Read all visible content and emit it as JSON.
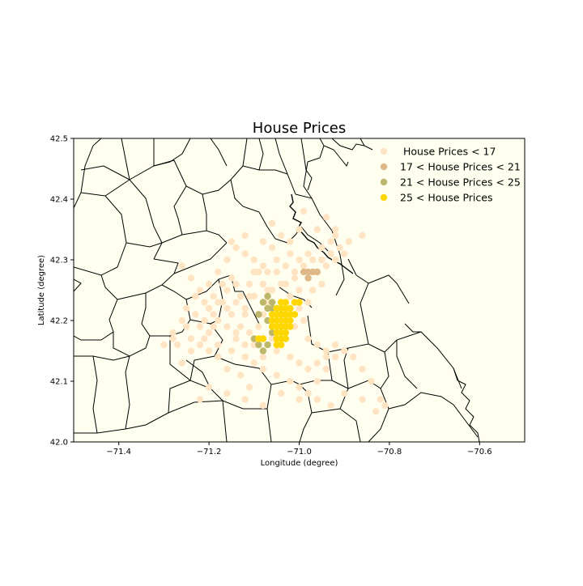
{
  "chart_data": {
    "type": "scatter",
    "title": "House Prices",
    "xlabel": "Longitude (degree)",
    "ylabel": "Latitude (degree)",
    "xlim": [
      -71.5,
      -70.5
    ],
    "ylim": [
      42.0,
      42.5
    ],
    "x_ticks": [
      -71.4,
      -71.2,
      -71.0,
      -70.8,
      -70.6
    ],
    "x_tick_labels": [
      "−71.4",
      "−71.2",
      "−71.0",
      "−70.8",
      "−70.6"
    ],
    "y_ticks": [
      42.0,
      42.1,
      42.2,
      42.3,
      42.4,
      42.5
    ],
    "y_tick_labels": [
      "42.0",
      "42.1",
      "42.2",
      "42.3",
      "42.4",
      "42.5"
    ],
    "grid": false,
    "background_color": "#fffff0",
    "boundary_color": "#000000",
    "legend_position": "top-right",
    "series": [
      {
        "name": " House Prices < 17",
        "color": "#ffe4c4",
        "points": [
          [
            -71.26,
            42.29
          ],
          [
            -71.24,
            42.27
          ],
          [
            -71.22,
            42.25
          ],
          [
            -71.2,
            42.22
          ],
          [
            -71.18,
            42.2
          ],
          [
            -71.16,
            42.19
          ],
          [
            -71.14,
            42.18
          ],
          [
            -71.12,
            42.21
          ],
          [
            -71.1,
            42.24
          ],
          [
            -71.08,
            42.26
          ],
          [
            -71.06,
            42.25
          ],
          [
            -71.04,
            42.26
          ],
          [
            -71.02,
            42.24
          ],
          [
            -71.0,
            42.25
          ],
          [
            -70.98,
            42.27
          ],
          [
            -70.96,
            42.28
          ],
          [
            -70.94,
            42.29
          ],
          [
            -70.92,
            42.3
          ],
          [
            -70.9,
            42.31
          ],
          [
            -70.93,
            42.33
          ],
          [
            -70.95,
            42.32
          ],
          [
            -70.98,
            42.31
          ],
          [
            -71.0,
            42.3
          ],
          [
            -71.02,
            42.31
          ],
          [
            -71.05,
            42.3
          ],
          [
            -71.08,
            42.29
          ],
          [
            -71.1,
            42.3
          ],
          [
            -71.12,
            42.31
          ],
          [
            -71.14,
            42.32
          ],
          [
            -71.16,
            42.3
          ],
          [
            -71.18,
            42.28
          ],
          [
            -71.2,
            42.26
          ],
          [
            -71.23,
            42.24
          ],
          [
            -71.26,
            42.2
          ],
          [
            -71.28,
            42.18
          ],
          [
            -71.3,
            42.16
          ],
          [
            -71.27,
            42.16
          ],
          [
            -71.24,
            42.17
          ],
          [
            -71.21,
            42.17
          ],
          [
            -71.18,
            42.16
          ],
          [
            -71.15,
            42.15
          ],
          [
            -71.12,
            42.14
          ],
          [
            -71.1,
            42.13
          ],
          [
            -71.08,
            42.12
          ],
          [
            -71.05,
            42.11
          ],
          [
            -71.02,
            42.1
          ],
          [
            -71.0,
            42.09
          ],
          [
            -70.98,
            42.08
          ],
          [
            -70.96,
            42.1
          ],
          [
            -70.94,
            42.12
          ],
          [
            -70.92,
            42.14
          ],
          [
            -70.9,
            42.15
          ],
          [
            -70.88,
            42.14
          ],
          [
            -70.86,
            42.12
          ],
          [
            -70.84,
            42.1
          ],
          [
            -70.82,
            42.07
          ],
          [
            -70.83,
            42.05
          ],
          [
            -70.81,
            42.06
          ],
          [
            -70.86,
            42.07
          ],
          [
            -70.9,
            42.08
          ],
          [
            -70.93,
            42.06
          ],
          [
            -70.96,
            42.07
          ],
          [
            -71.0,
            42.07
          ],
          [
            -71.04,
            42.08
          ],
          [
            -71.08,
            42.06
          ],
          [
            -71.12,
            42.07
          ],
          [
            -71.16,
            42.08
          ],
          [
            -71.2,
            42.09
          ],
          [
            -71.22,
            42.07
          ],
          [
            -71.11,
            42.09
          ],
          [
            -71.13,
            42.11
          ],
          [
            -71.16,
            42.12
          ],
          [
            -71.18,
            42.14
          ],
          [
            -71.2,
            42.15
          ],
          [
            -71.22,
            42.16
          ],
          [
            -71.24,
            42.15
          ],
          [
            -71.26,
            42.13
          ],
          [
            -71.08,
            42.14
          ],
          [
            -71.05,
            42.15
          ],
          [
            -71.02,
            42.14
          ],
          [
            -71.0,
            42.13
          ],
          [
            -70.98,
            42.12
          ],
          [
            -70.96,
            42.13
          ],
          [
            -70.94,
            42.14
          ],
          [
            -71.03,
            42.18
          ],
          [
            -71.01,
            42.19
          ],
          [
            -70.99,
            42.2
          ],
          [
            -71.09,
            42.19
          ],
          [
            -71.11,
            42.18
          ],
          [
            -71.13,
            42.19
          ],
          [
            -71.15,
            42.21
          ],
          [
            -71.17,
            42.23
          ],
          [
            -71.19,
            42.24
          ],
          [
            -71.21,
            42.23
          ],
          [
            -71.13,
            42.24
          ],
          [
            -71.11,
            42.26
          ],
          [
            -71.09,
            42.28
          ],
          [
            -71.07,
            42.28
          ],
          [
            -71.05,
            42.28
          ],
          [
            -71.03,
            42.29
          ],
          [
            -71.01,
            42.28
          ],
          [
            -70.99,
            42.29
          ],
          [
            -70.97,
            42.3
          ],
          [
            -70.95,
            42.3
          ],
          [
            -70.93,
            42.31
          ],
          [
            -70.91,
            42.32
          ],
          [
            -70.89,
            42.33
          ],
          [
            -70.92,
            42.34
          ],
          [
            -70.96,
            42.35
          ],
          [
            -71.0,
            42.35
          ],
          [
            -71.04,
            42.34
          ],
          [
            -71.08,
            42.33
          ],
          [
            -71.12,
            42.34
          ],
          [
            -71.15,
            42.33
          ],
          [
            -71.06,
            42.36
          ],
          [
            -70.99,
            42.38
          ],
          [
            -70.94,
            42.37
          ],
          [
            -70.92,
            42.35
          ],
          [
            -70.86,
            42.34
          ],
          [
            -71.02,
            42.33
          ],
          [
            -71.06,
            42.32
          ],
          [
            -71.1,
            42.28
          ],
          [
            -71.14,
            42.26
          ],
          [
            -71.16,
            42.25
          ],
          [
            -71.18,
            42.23
          ],
          [
            -71.07,
            42.23
          ],
          [
            -71.04,
            42.21
          ],
          [
            -71.0,
            42.22
          ],
          [
            -70.98,
            42.23
          ],
          [
            -71.12,
            42.16
          ],
          [
            -71.14,
            42.17
          ],
          [
            -71.1,
            42.16
          ],
          [
            -71.06,
            42.17
          ],
          [
            -70.98,
            42.17
          ],
          [
            -70.96,
            42.16
          ],
          [
            -70.94,
            42.15
          ],
          [
            -70.92,
            42.16
          ],
          [
            -71.2,
            42.18
          ],
          [
            -71.22,
            42.19
          ],
          [
            -71.25,
            42.19
          ],
          [
            -71.28,
            42.17
          ],
          [
            -71.25,
            42.22
          ],
          [
            -71.23,
            42.21
          ],
          [
            -71.19,
            42.19
          ],
          [
            -71.16,
            42.22
          ],
          [
            -71.14,
            42.23
          ],
          [
            -71.12,
            42.22
          ],
          [
            -71.08,
            42.21
          ],
          [
            -71.02,
            42.22
          ],
          [
            -70.97,
            42.25
          ],
          [
            -70.95,
            42.26
          ],
          [
            -71.01,
            42.27
          ],
          [
            -71.03,
            42.26
          ],
          [
            -71.07,
            42.25
          ],
          [
            -71.11,
            42.24
          ],
          [
            -71.15,
            42.27
          ],
          [
            -71.17,
            42.26
          ],
          [
            -71.19,
            42.21
          ],
          [
            -71.21,
            42.2
          ]
        ]
      },
      {
        "name": "17 < House Prices < 21",
        "color": "#deb887",
        "points": [
          [
            -70.99,
            42.28
          ],
          [
            -70.98,
            42.28
          ],
          [
            -70.97,
            42.28
          ],
          [
            -70.98,
            42.27
          ],
          [
            -70.96,
            42.28
          ]
        ]
      },
      {
        "name": "21 < House Prices < 25",
        "color": "#bdb76b",
        "points": [
          [
            -71.08,
            42.23
          ],
          [
            -71.07,
            42.24
          ],
          [
            -71.06,
            42.22
          ],
          [
            -71.09,
            42.21
          ],
          [
            -71.07,
            42.22
          ],
          [
            -71.05,
            42.22
          ],
          [
            -71.08,
            42.17
          ],
          [
            -71.06,
            42.18
          ],
          [
            -71.09,
            42.16
          ],
          [
            -71.07,
            42.16
          ],
          [
            -71.08,
            42.15
          ],
          [
            -71.1,
            42.17
          ],
          [
            -71.06,
            42.23
          ],
          [
            -71.04,
            42.21
          ],
          [
            -71.03,
            42.2
          ],
          [
            -71.07,
            42.2
          ],
          [
            -71.06,
            42.19
          ]
        ]
      },
      {
        "name": "25 < House Prices",
        "color": "#ffd700",
        "points": [
          [
            -71.05,
            42.22
          ],
          [
            -71.04,
            42.22
          ],
          [
            -71.03,
            42.22
          ],
          [
            -71.02,
            42.22
          ],
          [
            -71.01,
            42.23
          ],
          [
            -71.0,
            42.23
          ],
          [
            -71.04,
            42.21
          ],
          [
            -71.03,
            42.21
          ],
          [
            -71.02,
            42.21
          ],
          [
            -71.05,
            42.2
          ],
          [
            -71.04,
            42.2
          ],
          [
            -71.03,
            42.2
          ],
          [
            -71.02,
            42.2
          ],
          [
            -71.05,
            42.19
          ],
          [
            -71.04,
            42.19
          ],
          [
            -71.03,
            42.19
          ],
          [
            -71.05,
            42.18
          ],
          [
            -71.04,
            42.18
          ],
          [
            -71.03,
            42.18
          ],
          [
            -71.05,
            42.17
          ],
          [
            -71.04,
            42.17
          ],
          [
            -71.03,
            42.17
          ],
          [
            -71.06,
            42.2
          ],
          [
            -71.06,
            42.19
          ],
          [
            -71.09,
            42.17
          ],
          [
            -71.08,
            42.17
          ],
          [
            -71.02,
            42.19
          ],
          [
            -71.01,
            42.21
          ],
          [
            -71.04,
            42.16
          ],
          [
            -71.05,
            42.16
          ],
          [
            -71.03,
            42.23
          ],
          [
            -71.04,
            42.23
          ],
          [
            -71.05,
            42.21
          ],
          [
            -71.06,
            42.21
          ]
        ]
      }
    ]
  }
}
